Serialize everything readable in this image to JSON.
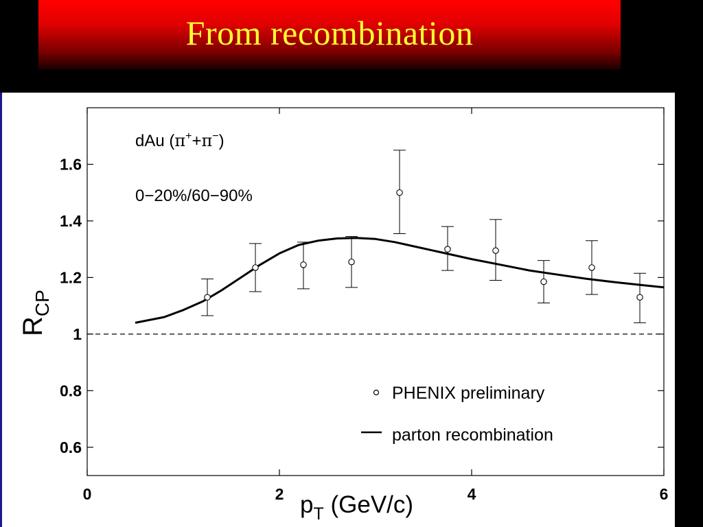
{
  "slide": {
    "title": "From recombination"
  },
  "chart_data": {
    "type": "scatter",
    "xlabel": {
      "main": "p",
      "sub": "T",
      "unit": " (GeV/c)"
    },
    "ylabel": {
      "main": "R",
      "sub": "CP"
    },
    "xlim": [
      0,
      6
    ],
    "ylim": [
      0.5,
      1.8
    ],
    "x_ticks": [
      "0",
      "2",
      "4",
      "6"
    ],
    "y_ticks": [
      "0.6",
      "0.8",
      "1",
      "1.2",
      "1.4",
      "1.6"
    ],
    "annotations": {
      "system": {
        "prefix": "dAu (",
        "pi": "π",
        "plus": "+",
        "join": "+",
        "minus": "−",
        "suffix": ")"
      },
      "centrality": "0−20%/60−90%"
    },
    "reference_line": {
      "y": 1,
      "style": "dashed"
    },
    "legend": {
      "placement": "bottom-right",
      "points_label": "PHENIX preliminary",
      "line_label": "parton recombination"
    },
    "series": [
      {
        "name": "PHENIX preliminary",
        "kind": "points",
        "x": [
          1.25,
          1.75,
          2.25,
          2.75,
          3.25,
          3.75,
          4.25,
          4.75,
          5.25,
          5.75
        ],
        "y": [
          1.13,
          1.235,
          1.245,
          1.255,
          1.5,
          1.3,
          1.295,
          1.185,
          1.235,
          1.13
        ],
        "err_low": [
          0.065,
          0.085,
          0.085,
          0.09,
          0.145,
          0.075,
          0.105,
          0.075,
          0.095,
          0.09
        ],
        "err_high": [
          0.065,
          0.085,
          0.08,
          0.09,
          0.15,
          0.08,
          0.11,
          0.075,
          0.095,
          0.085
        ]
      },
      {
        "name": "parton recombination",
        "kind": "line",
        "x": [
          0.5,
          0.8,
          1.0,
          1.2,
          1.4,
          1.6,
          1.8,
          2.0,
          2.2,
          2.4,
          2.6,
          2.8,
          3.0,
          3.2,
          3.4,
          3.6,
          3.8,
          4.0,
          4.3,
          4.6,
          4.9,
          5.2,
          5.5,
          5.8,
          6.0
        ],
        "y": [
          1.04,
          1.06,
          1.085,
          1.115,
          1.155,
          1.2,
          1.245,
          1.285,
          1.315,
          1.33,
          1.338,
          1.34,
          1.336,
          1.325,
          1.31,
          1.295,
          1.28,
          1.265,
          1.245,
          1.225,
          1.21,
          1.195,
          1.183,
          1.172,
          1.165
        ]
      }
    ],
    "colors": {
      "marks": "#000000",
      "panel": "#ffffff",
      "title_bar": "#e00000",
      "title_text": "#ffff33"
    }
  }
}
